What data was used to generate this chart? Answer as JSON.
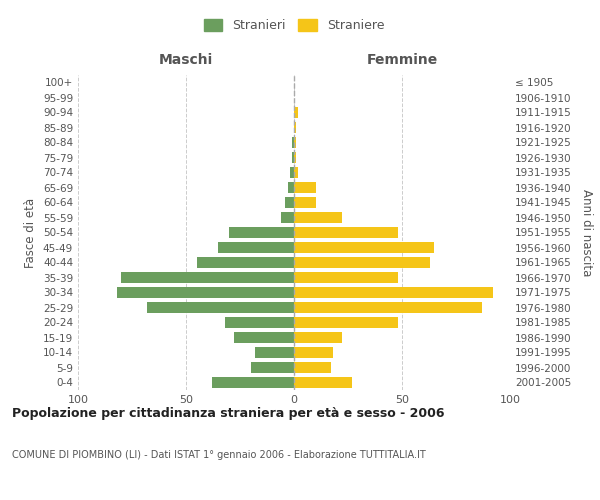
{
  "age_groups": [
    "0-4",
    "5-9",
    "10-14",
    "15-19",
    "20-24",
    "25-29",
    "30-34",
    "35-39",
    "40-44",
    "45-49",
    "50-54",
    "55-59",
    "60-64",
    "65-69",
    "70-74",
    "75-79",
    "80-84",
    "85-89",
    "90-94",
    "95-99",
    "100+"
  ],
  "birth_years": [
    "2001-2005",
    "1996-2000",
    "1991-1995",
    "1986-1990",
    "1981-1985",
    "1976-1980",
    "1971-1975",
    "1966-1970",
    "1961-1965",
    "1956-1960",
    "1951-1955",
    "1946-1950",
    "1941-1945",
    "1936-1940",
    "1931-1935",
    "1926-1930",
    "1921-1925",
    "1916-1920",
    "1911-1915",
    "1906-1910",
    "≤ 1905"
  ],
  "maschi": [
    38,
    20,
    18,
    28,
    32,
    68,
    82,
    80,
    45,
    35,
    30,
    6,
    4,
    3,
    2,
    1,
    1,
    0,
    0,
    0,
    0
  ],
  "femmine": [
    27,
    17,
    18,
    22,
    48,
    87,
    92,
    48,
    63,
    65,
    48,
    22,
    10,
    10,
    2,
    1,
    1,
    1,
    2,
    0,
    0
  ],
  "male_color": "#6b9e5e",
  "female_color": "#f5c518",
  "male_label": "Stranieri",
  "female_label": "Straniere",
  "xlabel_left": "Maschi",
  "xlabel_right": "Femmine",
  "ylabel_left": "Fasce di età",
  "ylabel_right": "Anni di nascita",
  "title": "Popolazione per cittadinanza straniera per età e sesso - 2006",
  "subtitle": "COMUNE DI PIOMBINO (LI) - Dati ISTAT 1° gennaio 2006 - Elaborazione TUTTITALIA.IT",
  "xlim": 100,
  "background_color": "#ffffff",
  "grid_color": "#cccccc",
  "dashed_line_color": "#aaaaaa",
  "text_color": "#555555"
}
